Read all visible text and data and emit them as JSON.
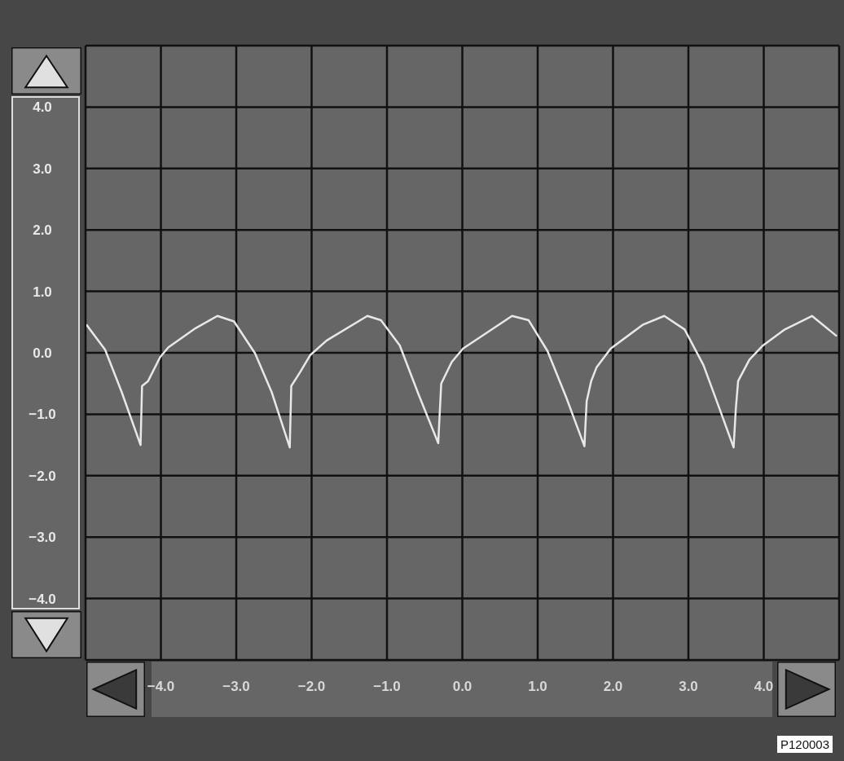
{
  "chart_data": {
    "type": "line",
    "x": [
      -4.99,
      -4.74,
      -4.52,
      -4.27,
      -4.25,
      -4.17,
      -4.01,
      -3.9,
      -3.54,
      -3.25,
      -3.03,
      -2.75,
      -2.53,
      -2.29,
      -2.27,
      -2.16,
      -2.02,
      -1.8,
      -1.26,
      -1.08,
      -0.83,
      -0.58,
      -0.32,
      -0.28,
      -0.14,
      0.01,
      0.12,
      0.66,
      0.88,
      1.13,
      1.38,
      1.62,
      1.65,
      1.71,
      1.78,
      1.97,
      2.4,
      2.68,
      2.95,
      3.2,
      3.41,
      3.6,
      3.63,
      3.66,
      3.81,
      3.99,
      4.28,
      4.64,
      4.97
    ],
    "series": [
      {
        "color": "#e8e8e8",
        "values": [
          0.46,
          0.05,
          -0.64,
          -1.5,
          -0.54,
          -0.46,
          -0.07,
          0.09,
          0.4,
          0.6,
          0.51,
          -0.01,
          -0.64,
          -1.54,
          -0.54,
          -0.33,
          -0.04,
          0.2,
          0.6,
          0.53,
          0.12,
          -0.68,
          -1.47,
          -0.5,
          -0.15,
          0.07,
          0.16,
          0.6,
          0.53,
          0.03,
          -0.73,
          -1.52,
          -0.79,
          -0.46,
          -0.24,
          0.07,
          0.46,
          0.6,
          0.38,
          -0.2,
          -0.9,
          -1.54,
          -0.9,
          -0.46,
          -0.11,
          0.12,
          0.38,
          0.6,
          0.27
        ]
      }
    ],
    "xlim": [
      -5,
      5
    ],
    "ylim": [
      -5,
      5
    ],
    "xticks": [
      {
        "value": -4,
        "label": "−4.0"
      },
      {
        "value": -3,
        "label": "−3.0"
      },
      {
        "value": -2,
        "label": "−2.0"
      },
      {
        "value": -1,
        "label": "−1.0"
      },
      {
        "value": 0,
        "label": "0.0"
      },
      {
        "value": 1,
        "label": "1.0"
      },
      {
        "value": 2,
        "label": "2.0"
      },
      {
        "value": 3,
        "label": "3.0"
      },
      {
        "value": 4,
        "label": "4.0"
      }
    ],
    "yticks": [
      {
        "value": -4,
        "label": "−4.0"
      },
      {
        "value": -3,
        "label": "−3.0"
      },
      {
        "value": -2,
        "label": "−2.0"
      },
      {
        "value": -1,
        "label": "−1.0"
      },
      {
        "value": 0,
        "label": "0.0"
      },
      {
        "value": 1,
        "label": "1.0"
      },
      {
        "value": 2,
        "label": "2.0"
      },
      {
        "value": 3,
        "label": "3.0"
      },
      {
        "value": 4,
        "label": "4.0"
      }
    ],
    "grid": true,
    "annotations": [
      "P120003"
    ]
  }
}
